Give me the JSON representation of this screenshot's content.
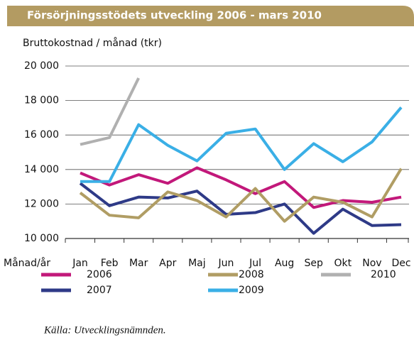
{
  "chart_data": {
    "type": "line",
    "title": "Försörjningsstödets utveckling 2006 - mars 2010",
    "ylabel": "Bruttokostnad / månad (tkr)",
    "xlabel": "Månad/år",
    "source": "Källa: Utvecklingsnämnden.",
    "categories": [
      "Jan",
      "Feb",
      "Mar",
      "Apr",
      "Maj",
      "Jun",
      "Jul",
      "Aug",
      "Sep",
      "Okt",
      "Nov",
      "Dec"
    ],
    "series": [
      {
        "name": "2006",
        "color": "#c2187a",
        "values": [
          13800,
          13100,
          13700,
          13200,
          14100,
          13400,
          12600,
          13300,
          11800,
          12200,
          12100,
          12400
        ]
      },
      {
        "name": "2007",
        "color": "#2e3a87",
        "values": [
          13200,
          11900,
          12400,
          12350,
          12750,
          11400,
          11500,
          12000,
          10300,
          11700,
          10750,
          10800
        ]
      },
      {
        "name": "2008",
        "color": "#b09d64",
        "values": [
          12650,
          11350,
          11200,
          12700,
          12200,
          11250,
          12900,
          11000,
          12400,
          12100,
          11250,
          14050
        ]
      },
      {
        "name": "2009",
        "color": "#3aafe6",
        "values": [
          13300,
          13300,
          16600,
          15400,
          14500,
          16100,
          16350,
          14000,
          15500,
          14450,
          15600,
          17600
        ]
      },
      {
        "name": "2010",
        "color": "#b0b0b0",
        "values": [
          15450,
          15850,
          19300,
          null,
          null,
          null,
          null,
          null,
          null,
          null,
          null,
          null
        ]
      }
    ],
    "ylim": [
      10000,
      20000
    ],
    "yticks": [
      {
        "value": 10000,
        "label": "10 000"
      },
      {
        "value": 12000,
        "label": "12 000"
      },
      {
        "value": 14000,
        "label": "14 000"
      },
      {
        "value": 16000,
        "label": "16 000"
      },
      {
        "value": 18000,
        "label": "18 000"
      },
      {
        "value": 20000,
        "label": "20 000"
      }
    ],
    "grid": true
  }
}
